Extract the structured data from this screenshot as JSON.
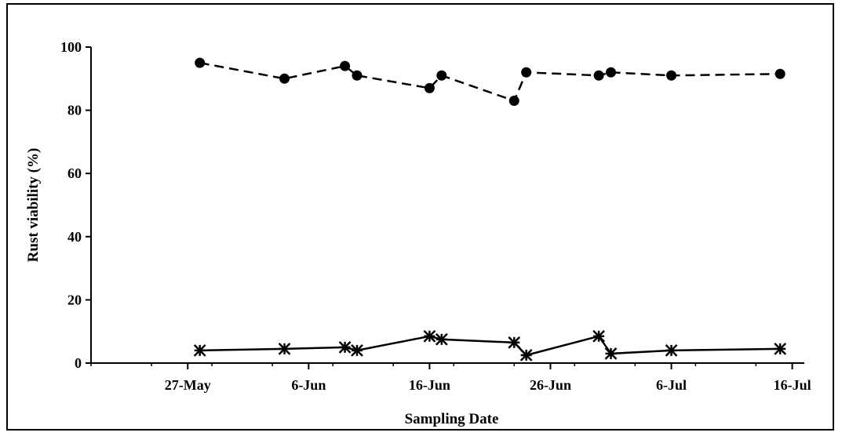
{
  "chart_data": {
    "type": "line",
    "title": "",
    "xlabel": "Sampling Date",
    "ylabel": "Rust viability (%)",
    "xlim": [
      "2000-05-19",
      "2000-07-17"
    ],
    "ylim": [
      0,
      100
    ],
    "x_ticks": [
      {
        "date": "2000-05-27",
        "label": "27-May"
      },
      {
        "date": "2000-06-06",
        "label": "6-Jun"
      },
      {
        "date": "2000-06-16",
        "label": "16-Jun"
      },
      {
        "date": "2000-06-26",
        "label": "26-Jun"
      },
      {
        "date": "2000-07-06",
        "label": "6-Jul"
      },
      {
        "date": "2000-07-16",
        "label": "16-Jul"
      }
    ],
    "y_ticks": [
      0,
      20,
      40,
      60,
      80,
      100
    ],
    "grid": false,
    "legend": "none",
    "series": [
      {
        "marker": "circle",
        "line_style": "dashed",
        "color": "#000000",
        "points": [
          {
            "x": "2000-05-28",
            "y": 95
          },
          {
            "x": "2000-06-04",
            "y": 90
          },
          {
            "x": "2000-06-09",
            "y": 94
          },
          {
            "x": "2000-06-10",
            "y": 91
          },
          {
            "x": "2000-06-16",
            "y": 87
          },
          {
            "x": "2000-06-17",
            "y": 91
          },
          {
            "x": "2000-06-23",
            "y": 83
          },
          {
            "x": "2000-06-24",
            "y": 92
          },
          {
            "x": "2000-06-30",
            "y": 91
          },
          {
            "x": "2000-07-01",
            "y": 92
          },
          {
            "x": "2000-07-06",
            "y": 91
          },
          {
            "x": "2000-07-15",
            "y": 91.5
          }
        ]
      },
      {
        "marker": "asterisk",
        "line_style": "solid",
        "color": "#000000",
        "points": [
          {
            "x": "2000-05-28",
            "y": 4
          },
          {
            "x": "2000-06-04",
            "y": 4.5
          },
          {
            "x": "2000-06-09",
            "y": 5
          },
          {
            "x": "2000-06-10",
            "y": 4
          },
          {
            "x": "2000-06-16",
            "y": 8.5
          },
          {
            "x": "2000-06-17",
            "y": 7.5
          },
          {
            "x": "2000-06-23",
            "y": 6.5
          },
          {
            "x": "2000-06-24",
            "y": 2.5
          },
          {
            "x": "2000-06-30",
            "y": 8.5
          },
          {
            "x": "2000-07-01",
            "y": 3
          },
          {
            "x": "2000-07-06",
            "y": 4
          },
          {
            "x": "2000-07-15",
            "y": 4.5
          }
        ]
      }
    ]
  }
}
